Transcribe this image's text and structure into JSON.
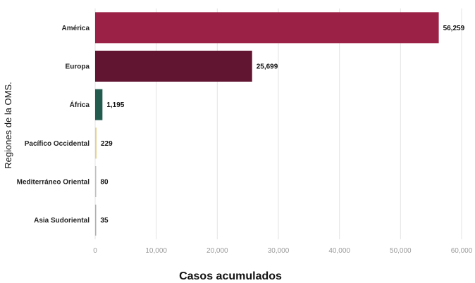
{
  "chart_data": {
    "type": "bar",
    "orientation": "horizontal",
    "categories": [
      "América",
      "Europa",
      "África",
      "Pacífico Occidental",
      "Mediterráneo Oriental",
      "Asia Sudoriental"
    ],
    "values": [
      56259,
      25699,
      1195,
      229,
      80,
      35
    ],
    "value_labels": [
      "56,259",
      "25,699",
      "1,195",
      "229",
      "80",
      "35"
    ],
    "colors": [
      "#9b2246",
      "#621530",
      "#235b4e",
      "#e6d194",
      "#c0c0c0",
      "#b0b0b0"
    ],
    "xlabel": "Casos acumulados",
    "ylabel": "Regiones de la OMS.",
    "xlim": [
      0,
      60000
    ],
    "xticks": [
      0,
      10000,
      20000,
      30000,
      40000,
      50000,
      60000
    ],
    "xtick_labels": [
      "0",
      "10,000",
      "20,000",
      "30,000",
      "40,000",
      "50,000",
      "60,000"
    ],
    "grid": true
  }
}
